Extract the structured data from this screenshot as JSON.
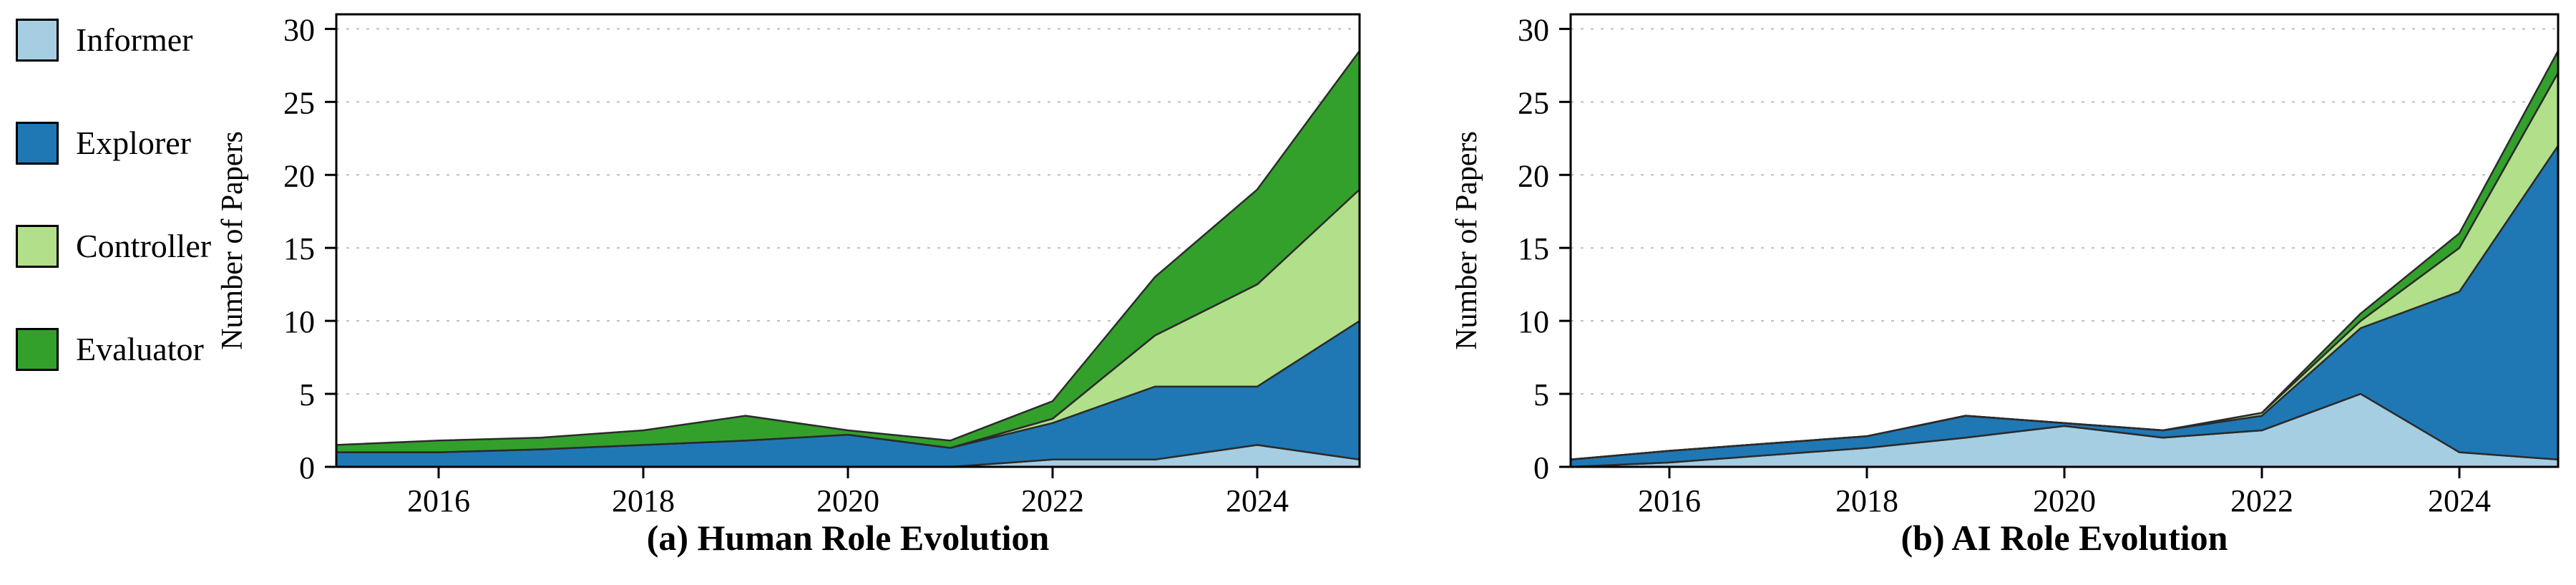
{
  "figure": {
    "background": "#ffffff"
  },
  "legend": {
    "items": [
      {
        "label": "Informer",
        "color": "#a6cee3"
      },
      {
        "label": "Explorer",
        "color": "#1f78b4"
      },
      {
        "label": "Controller",
        "color": "#b2df8a"
      },
      {
        "label": "Evaluator",
        "color": "#33a02c"
      }
    ]
  },
  "chart_data": [
    {
      "type": "area",
      "stacked": true,
      "title": "(a) Human Role Evolution",
      "xlabel": "",
      "ylabel": "Number of Papers",
      "x": [
        2015,
        2016,
        2017,
        2018,
        2019,
        2020,
        2021,
        2022,
        2023,
        2024,
        2025
      ],
      "xticks": [
        2016,
        2018,
        2020,
        2022,
        2024
      ],
      "yticks": [
        0,
        5,
        10,
        15,
        20,
        25,
        30
      ],
      "xlim": [
        2015,
        2025
      ],
      "ylim": [
        0,
        31
      ],
      "grid": "horizontal dashed",
      "grid_color": "#bdbdbd",
      "edge_color": "#2b2b2b",
      "axis_color": "#000000",
      "legend_position": "outside-left",
      "series": [
        {
          "name": "Informer",
          "color": "#a6cee3",
          "values": [
            0,
            0,
            0,
            0,
            0,
            0,
            0,
            0.5,
            0.5,
            1.5,
            0.5
          ]
        },
        {
          "name": "Explorer",
          "color": "#1f78b4",
          "values": [
            1,
            1,
            1.2,
            1.5,
            1.8,
            2.2,
            1.3,
            2.5,
            5,
            4,
            9.5
          ]
        },
        {
          "name": "Controller",
          "color": "#b2df8a",
          "values": [
            0,
            0,
            0,
            0,
            0,
            0,
            0,
            0.3,
            3.5,
            7,
            9
          ]
        },
        {
          "name": "Evaluator",
          "color": "#33a02c",
          "values": [
            0.5,
            0.8,
            0.8,
            1,
            1.7,
            0.3,
            0.5,
            1.2,
            4,
            6.5,
            9.5
          ]
        }
      ]
    },
    {
      "type": "area",
      "stacked": true,
      "title": "(b) AI Role Evolution",
      "xlabel": "",
      "ylabel": "Number of Papers",
      "x": [
        2015,
        2016,
        2017,
        2018,
        2019,
        2020,
        2021,
        2022,
        2023,
        2024,
        2025
      ],
      "xticks": [
        2016,
        2018,
        2020,
        2022,
        2024
      ],
      "yticks": [
        0,
        5,
        10,
        15,
        20,
        25,
        30
      ],
      "xlim": [
        2015,
        2025
      ],
      "ylim": [
        0,
        31
      ],
      "grid": "horizontal dashed",
      "grid_color": "#bdbdbd",
      "edge_color": "#2b2b2b",
      "axis_color": "#000000",
      "legend_position": "none",
      "series": [
        {
          "name": "Informer",
          "color": "#a6cee3",
          "values": [
            0,
            0.3,
            0.8,
            1.3,
            2,
            2.8,
            2,
            2.5,
            5,
            1,
            0.5
          ]
        },
        {
          "name": "Explorer",
          "color": "#1f78b4",
          "values": [
            0.5,
            0.8,
            0.8,
            0.8,
            1.5,
            0.2,
            0.5,
            1,
            4.5,
            11,
            21.5
          ]
        },
        {
          "name": "Controller",
          "color": "#b2df8a",
          "values": [
            0,
            0,
            0,
            0,
            0,
            0,
            0,
            0.2,
            0.5,
            3,
            5
          ]
        },
        {
          "name": "Evaluator",
          "color": "#33a02c",
          "values": [
            0,
            0,
            0,
            0,
            0,
            0,
            0,
            0,
            0.5,
            1,
            1.5
          ]
        }
      ]
    }
  ]
}
